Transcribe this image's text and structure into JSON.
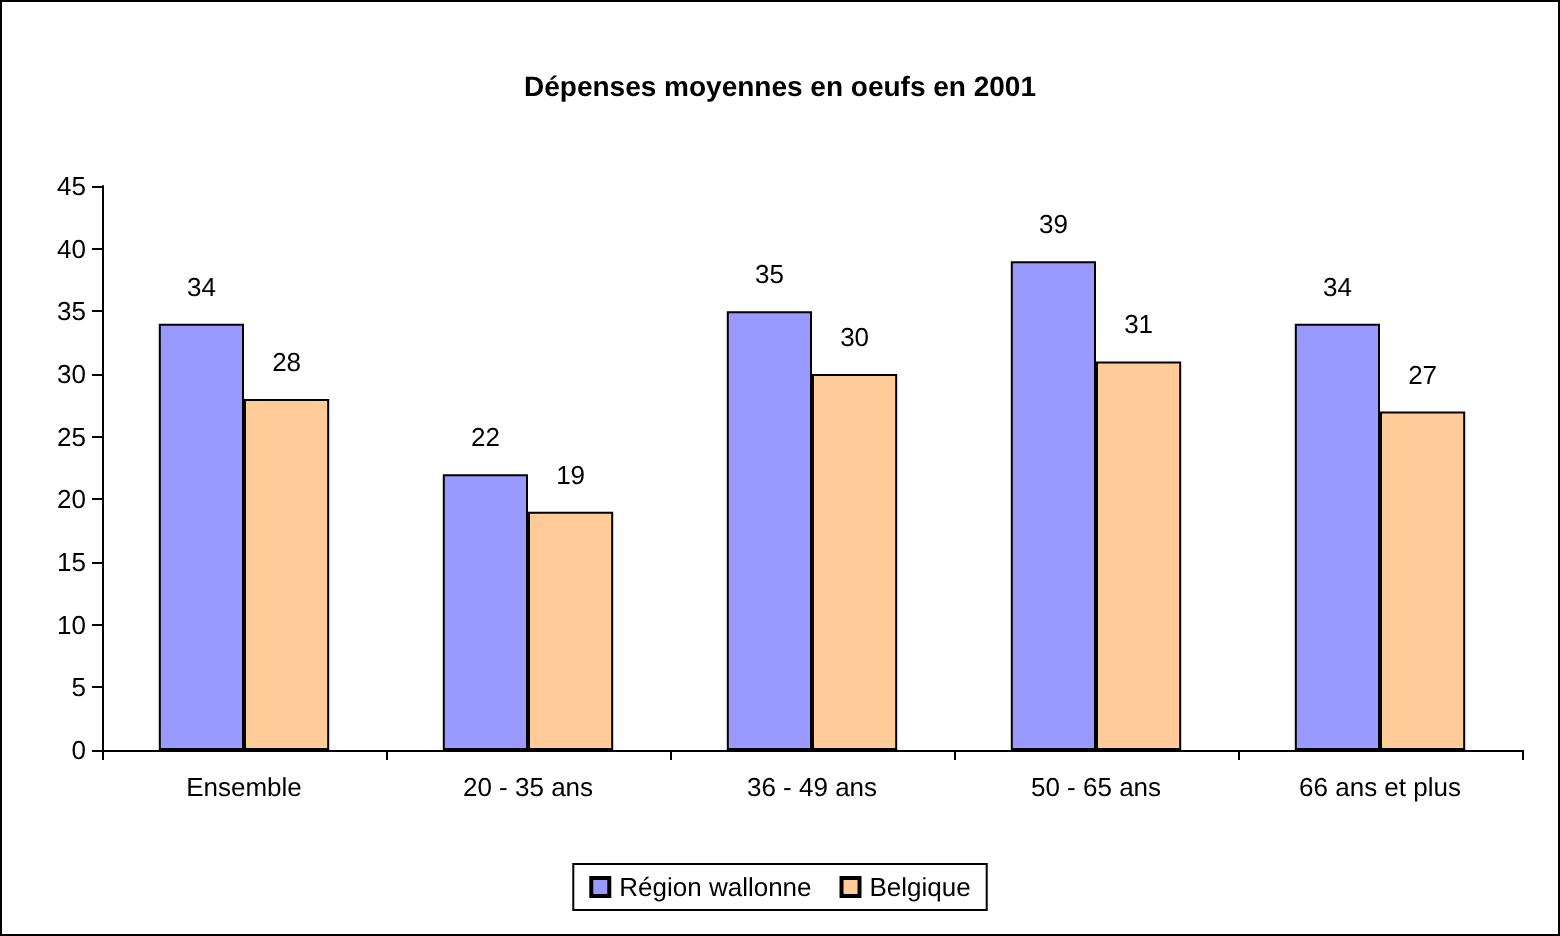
{
  "chart_data": {
    "type": "bar",
    "title": "Dépenses moyennes en oeufs en 2001",
    "categories": [
      "Ensemble",
      "20 - 35 ans",
      "36 - 49 ans",
      "50 - 65 ans",
      "66 ans et plus"
    ],
    "series": [
      {
        "name": "Région wallonne",
        "color": "#9999ff",
        "values": [
          34,
          22,
          35,
          39,
          34
        ]
      },
      {
        "name": "Belgique",
        "color": "#ffcc99",
        "values": [
          28,
          19,
          30,
          31,
          27
        ]
      }
    ],
    "ylim": [
      0,
      45
    ],
    "yticks": [
      0,
      5,
      10,
      15,
      20,
      25,
      30,
      35,
      40,
      45
    ],
    "grid": false,
    "legend": "bottom",
    "data_labels": true
  }
}
